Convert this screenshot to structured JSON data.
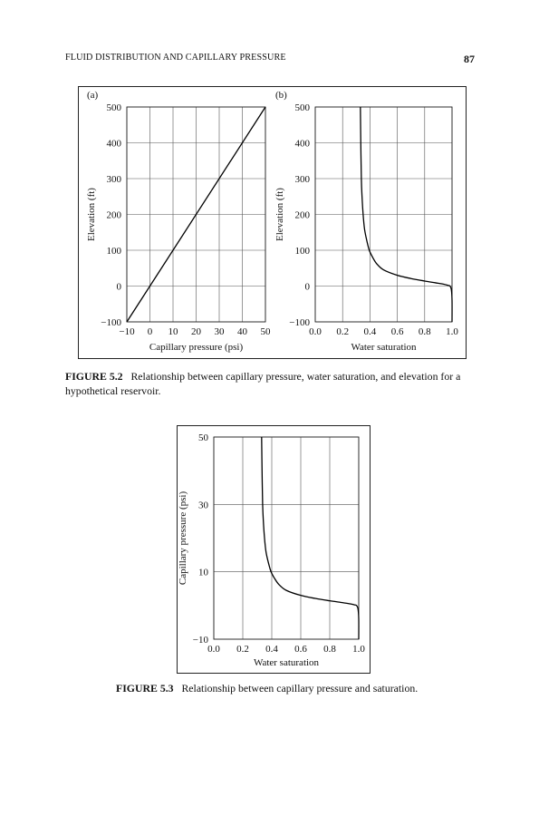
{
  "header": {
    "running_title": "FLUID DISTRIBUTION AND CAPILLARY PRESSURE",
    "page_number": "87"
  },
  "figure_5_2": {
    "label": "FIGURE 5.2",
    "caption": "Relationship between capillary pressure, water saturation, and elevation for a hypothetical reservoir."
  },
  "figure_5_3": {
    "label": "FIGURE 5.3",
    "caption": "Relationship between capillary pressure and saturation."
  },
  "chart_data": [
    {
      "type": "line",
      "panel_label": "(a)",
      "xlabel": "Capillary pressure (psi)",
      "ylabel": "Elevation (ft)",
      "xlim": [
        -10,
        50
      ],
      "ylim": [
        -100,
        500
      ],
      "xticks": [
        -10,
        0,
        10,
        20,
        30,
        40,
        50
      ],
      "xticklabels": [
        "−10",
        "0",
        "10",
        "20",
        "30",
        "40",
        "50"
      ],
      "yticks": [
        -100,
        0,
        100,
        200,
        300,
        400,
        500
      ],
      "yticklabels": [
        "−100",
        "0",
        "100",
        "200",
        "300",
        "400",
        "500"
      ],
      "grid": true,
      "series": [
        {
          "x": [
            -10,
            50
          ],
          "y": [
            -100,
            500
          ]
        }
      ]
    },
    {
      "type": "line",
      "panel_label": "(b)",
      "xlabel": "Water saturation",
      "ylabel": "Elevation (ft)",
      "xlim": [
        0,
        1
      ],
      "ylim": [
        -100,
        500
      ],
      "xticks": [
        0,
        0.2,
        0.4,
        0.6,
        0.8,
        1.0
      ],
      "xticklabels": [
        "0.0",
        "0.2",
        "0.4",
        "0.6",
        "0.8",
        "1.0"
      ],
      "yticks": [
        -100,
        0,
        100,
        200,
        300,
        400,
        500
      ],
      "yticklabels": [
        "−100",
        "0",
        "100",
        "200",
        "300",
        "400",
        "500"
      ],
      "grid": true,
      "series": [
        {
          "x": [
            0.33,
            0.333,
            0.337,
            0.342,
            0.35,
            0.36,
            0.375,
            0.395,
            0.42,
            0.45,
            0.5,
            0.6,
            0.7,
            0.8,
            0.88,
            0.94,
            0.97,
            0.985,
            0.995,
            1.0,
            1.0
          ],
          "y": [
            500,
            400,
            300,
            250,
            200,
            160,
            130,
            100,
            80,
            62,
            45,
            30,
            21,
            14,
            9,
            5,
            2,
            0,
            -10,
            -40,
            -100
          ]
        }
      ]
    },
    {
      "type": "line",
      "panel_label": "",
      "xlabel": "Water saturation",
      "ylabel": "Capillary pressure (psi)",
      "xlim": [
        0,
        1
      ],
      "ylim": [
        -10,
        50
      ],
      "xticks": [
        0,
        0.2,
        0.4,
        0.6,
        0.8,
        1.0
      ],
      "xticklabels": [
        "0.0",
        "0.2",
        "0.4",
        "0.6",
        "0.8",
        "1.0"
      ],
      "yticks": [
        -10,
        10,
        30,
        50
      ],
      "yticklabels": [
        "−10",
        "10",
        "30",
        "50"
      ],
      "grid": true,
      "series": [
        {
          "x": [
            0.33,
            0.333,
            0.337,
            0.342,
            0.35,
            0.36,
            0.375,
            0.395,
            0.42,
            0.45,
            0.5,
            0.6,
            0.7,
            0.8,
            0.88,
            0.94,
            0.97,
            0.985,
            0.995,
            1.0,
            1.0
          ],
          "y": [
            50,
            40,
            30,
            25,
            20,
            16,
            13,
            10,
            8,
            6.2,
            4.5,
            3,
            2.1,
            1.4,
            0.9,
            0.5,
            0.2,
            0,
            -1,
            -4,
            -10
          ]
        }
      ]
    }
  ]
}
